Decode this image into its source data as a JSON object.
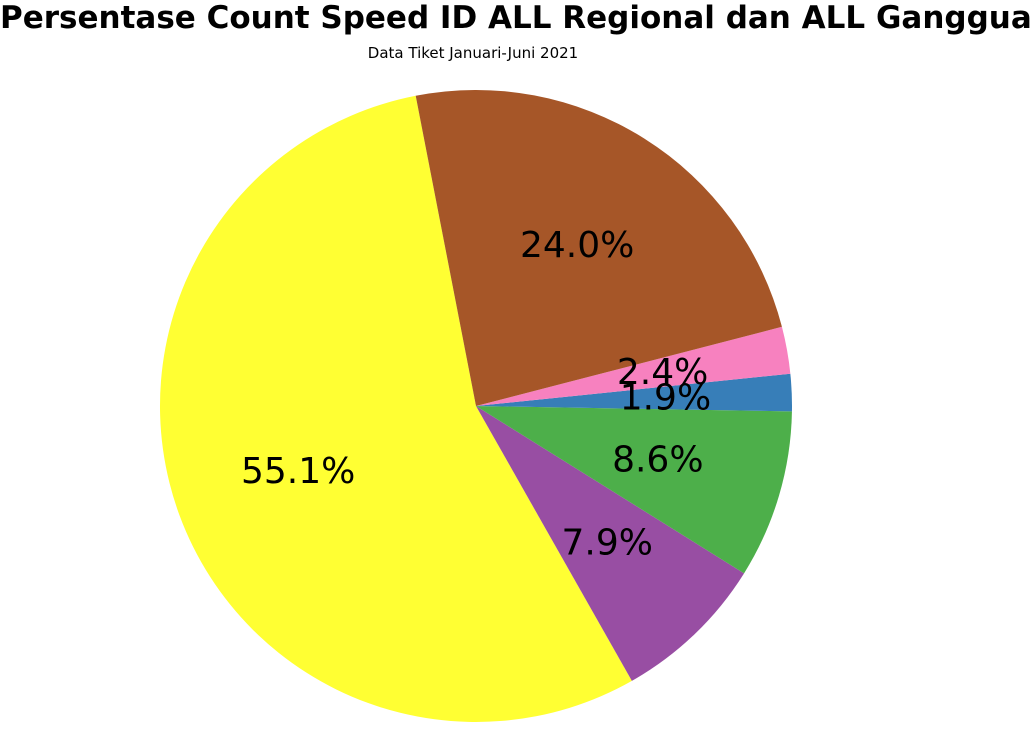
{
  "chart_data": {
    "type": "pie",
    "title": "Persentase Count Speed ID ALL Regional dan ALL Gangguan",
    "subtitle": "Data Tiket Januari-Juni 2021",
    "start_angle_deg": 101,
    "direction": "counterclockwise",
    "slices": [
      {
        "value": 55.1,
        "label": "55.1%",
        "color": "#ffff33"
      },
      {
        "value": 7.9,
        "label": "7.9%",
        "color": "#984ea3"
      },
      {
        "value": 8.6,
        "label": "8.6%",
        "color": "#4daf4a"
      },
      {
        "value": 1.9,
        "label": "1.9%",
        "color": "#377eb8"
      },
      {
        "value": 2.4,
        "label": "2.4%",
        "color": "#f781bf"
      },
      {
        "value": 24.0,
        "label": "24.0%",
        "color": "#a65628"
      }
    ]
  }
}
